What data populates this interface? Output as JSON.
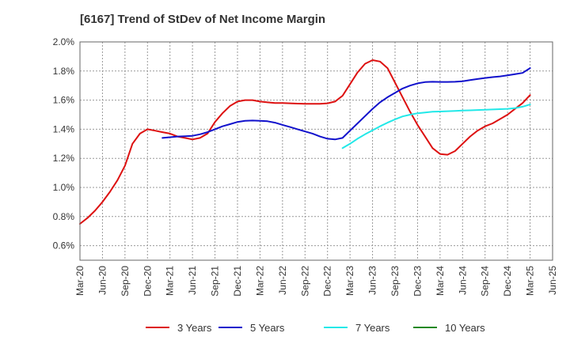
{
  "chart_data": {
    "type": "line",
    "title": "[6167]  Trend of StDev of Net Income Margin",
    "xlabel": "",
    "ylabel": "",
    "x_ticks": [
      "Mar-20",
      "Jun-20",
      "Sep-20",
      "Dec-20",
      "Mar-21",
      "Jun-21",
      "Sep-21",
      "Dec-21",
      "Mar-22",
      "Jun-22",
      "Sep-22",
      "Dec-22",
      "Mar-23",
      "Jun-23",
      "Sep-23",
      "Dec-23",
      "Mar-24",
      "Jun-24",
      "Sep-24",
      "Dec-24",
      "Mar-25",
      "Jun-25"
    ],
    "y_ticks": [
      "0.6%",
      "0.8%",
      "1.0%",
      "1.2%",
      "1.4%",
      "1.6%",
      "1.8%",
      "2.0%"
    ],
    "ylim": [
      0.5,
      2.0
    ],
    "grid": true,
    "legend_position": "bottom",
    "series": [
      {
        "name": "3 Years",
        "color": "#dd1111",
        "points": [
          [
            "Mar-20",
            0.75
          ],
          [
            "Apr-20",
            0.79
          ],
          [
            "May-20",
            0.84
          ],
          [
            "Jun-20",
            0.9
          ],
          [
            "Jul-20",
            0.97
          ],
          [
            "Aug-20",
            1.05
          ],
          [
            "Sep-20",
            1.15
          ],
          [
            "Oct-20",
            1.3
          ],
          [
            "Nov-20",
            1.37
          ],
          [
            "Dec-20",
            1.4
          ],
          [
            "Jan-21",
            1.39
          ],
          [
            "Feb-21",
            1.38
          ],
          [
            "Mar-21",
            1.37
          ],
          [
            "Apr-21",
            1.35
          ],
          [
            "May-21",
            1.34
          ],
          [
            "Jun-21",
            1.33
          ],
          [
            "Jul-21",
            1.34
          ],
          [
            "Aug-21",
            1.37
          ],
          [
            "Sep-21",
            1.45
          ],
          [
            "Oct-21",
            1.51
          ],
          [
            "Nov-21",
            1.56
          ],
          [
            "Dec-21",
            1.59
          ],
          [
            "Jan-22",
            1.6
          ],
          [
            "Feb-22",
            1.6
          ],
          [
            "Mar-22",
            1.59
          ],
          [
            "Apr-22",
            1.585
          ],
          [
            "May-22",
            1.58
          ],
          [
            "Jun-22",
            1.58
          ],
          [
            "Jul-22",
            1.578
          ],
          [
            "Aug-22",
            1.576
          ],
          [
            "Sep-22",
            1.575
          ],
          [
            "Oct-22",
            1.575
          ],
          [
            "Nov-22",
            1.575
          ],
          [
            "Dec-22",
            1.578
          ],
          [
            "Jan-23",
            1.59
          ],
          [
            "Feb-23",
            1.63
          ],
          [
            "Mar-23",
            1.71
          ],
          [
            "Apr-23",
            1.79
          ],
          [
            "May-23",
            1.85
          ],
          [
            "Jun-23",
            1.875
          ],
          [
            "Jul-23",
            1.865
          ],
          [
            "Aug-23",
            1.82
          ],
          [
            "Sep-23",
            1.72
          ],
          [
            "Oct-23",
            1.62
          ],
          [
            "Nov-23",
            1.52
          ],
          [
            "Dec-23",
            1.43
          ],
          [
            "Jan-24",
            1.35
          ],
          [
            "Feb-24",
            1.27
          ],
          [
            "Mar-24",
            1.23
          ],
          [
            "Apr-24",
            1.225
          ],
          [
            "May-24",
            1.25
          ],
          [
            "Jun-24",
            1.3
          ],
          [
            "Jul-24",
            1.35
          ],
          [
            "Aug-24",
            1.39
          ],
          [
            "Sep-24",
            1.42
          ],
          [
            "Oct-24",
            1.44
          ],
          [
            "Nov-24",
            1.47
          ],
          [
            "Dec-24",
            1.5
          ],
          [
            "Jan-25",
            1.54
          ],
          [
            "Feb-25",
            1.58
          ],
          [
            "Mar-25",
            1.635
          ]
        ]
      },
      {
        "name": "5 Years",
        "color": "#1111cc",
        "points": [
          [
            "Feb-21",
            1.34
          ],
          [
            "Mar-21",
            1.345
          ],
          [
            "Apr-21",
            1.35
          ],
          [
            "May-21",
            1.352
          ],
          [
            "Jun-21",
            1.355
          ],
          [
            "Jul-21",
            1.365
          ],
          [
            "Aug-21",
            1.38
          ],
          [
            "Sep-21",
            1.4
          ],
          [
            "Oct-21",
            1.42
          ],
          [
            "Nov-21",
            1.435
          ],
          [
            "Dec-21",
            1.45
          ],
          [
            "Jan-22",
            1.458
          ],
          [
            "Feb-22",
            1.46
          ],
          [
            "Mar-22",
            1.458
          ],
          [
            "Apr-22",
            1.455
          ],
          [
            "May-22",
            1.445
          ],
          [
            "Jun-22",
            1.43
          ],
          [
            "Jul-22",
            1.415
          ],
          [
            "Aug-22",
            1.4
          ],
          [
            "Sep-22",
            1.385
          ],
          [
            "Oct-22",
            1.37
          ],
          [
            "Nov-22",
            1.35
          ],
          [
            "Dec-22",
            1.335
          ],
          [
            "Jan-23",
            1.33
          ],
          [
            "Feb-23",
            1.34
          ],
          [
            "Mar-23",
            1.39
          ],
          [
            "Apr-23",
            1.44
          ],
          [
            "May-23",
            1.49
          ],
          [
            "Jun-23",
            1.54
          ],
          [
            "Jul-23",
            1.585
          ],
          [
            "Aug-23",
            1.62
          ],
          [
            "Sep-23",
            1.65
          ],
          [
            "Oct-23",
            1.68
          ],
          [
            "Nov-23",
            1.7
          ],
          [
            "Dec-23",
            1.715
          ],
          [
            "Jan-24",
            1.724
          ],
          [
            "Feb-24",
            1.726
          ],
          [
            "Mar-24",
            1.725
          ],
          [
            "Apr-24",
            1.725
          ],
          [
            "May-24",
            1.726
          ],
          [
            "Jun-24",
            1.73
          ],
          [
            "Jul-24",
            1.738
          ],
          [
            "Aug-24",
            1.745
          ],
          [
            "Sep-24",
            1.752
          ],
          [
            "Oct-24",
            1.758
          ],
          [
            "Nov-24",
            1.763
          ],
          [
            "Dec-24",
            1.77
          ],
          [
            "Jan-25",
            1.778
          ],
          [
            "Feb-25",
            1.787
          ],
          [
            "Mar-25",
            1.82
          ]
        ]
      },
      {
        "name": "7 Years",
        "color": "#22e8e8",
        "points": [
          [
            "Feb-23",
            1.27
          ],
          [
            "Mar-23",
            1.3
          ],
          [
            "Apr-23",
            1.335
          ],
          [
            "May-23",
            1.365
          ],
          [
            "Jun-23",
            1.393
          ],
          [
            "Jul-23",
            1.42
          ],
          [
            "Aug-23",
            1.445
          ],
          [
            "Sep-23",
            1.468
          ],
          [
            "Oct-23",
            1.488
          ],
          [
            "Nov-23",
            1.5
          ],
          [
            "Dec-23",
            1.51
          ],
          [
            "Jan-24",
            1.515
          ],
          [
            "Feb-24",
            1.52
          ],
          [
            "Mar-24",
            1.522
          ],
          [
            "Apr-24",
            1.524
          ],
          [
            "May-24",
            1.526
          ],
          [
            "Jun-24",
            1.528
          ],
          [
            "Jul-24",
            1.53
          ],
          [
            "Aug-24",
            1.532
          ],
          [
            "Sep-24",
            1.534
          ],
          [
            "Oct-24",
            1.536
          ],
          [
            "Nov-24",
            1.538
          ],
          [
            "Dec-24",
            1.54
          ],
          [
            "Jan-25",
            1.545
          ],
          [
            "Feb-25",
            1.555
          ],
          [
            "Mar-25",
            1.57
          ]
        ]
      },
      {
        "name": "10 Years",
        "color": "#228822",
        "points": []
      }
    ]
  }
}
